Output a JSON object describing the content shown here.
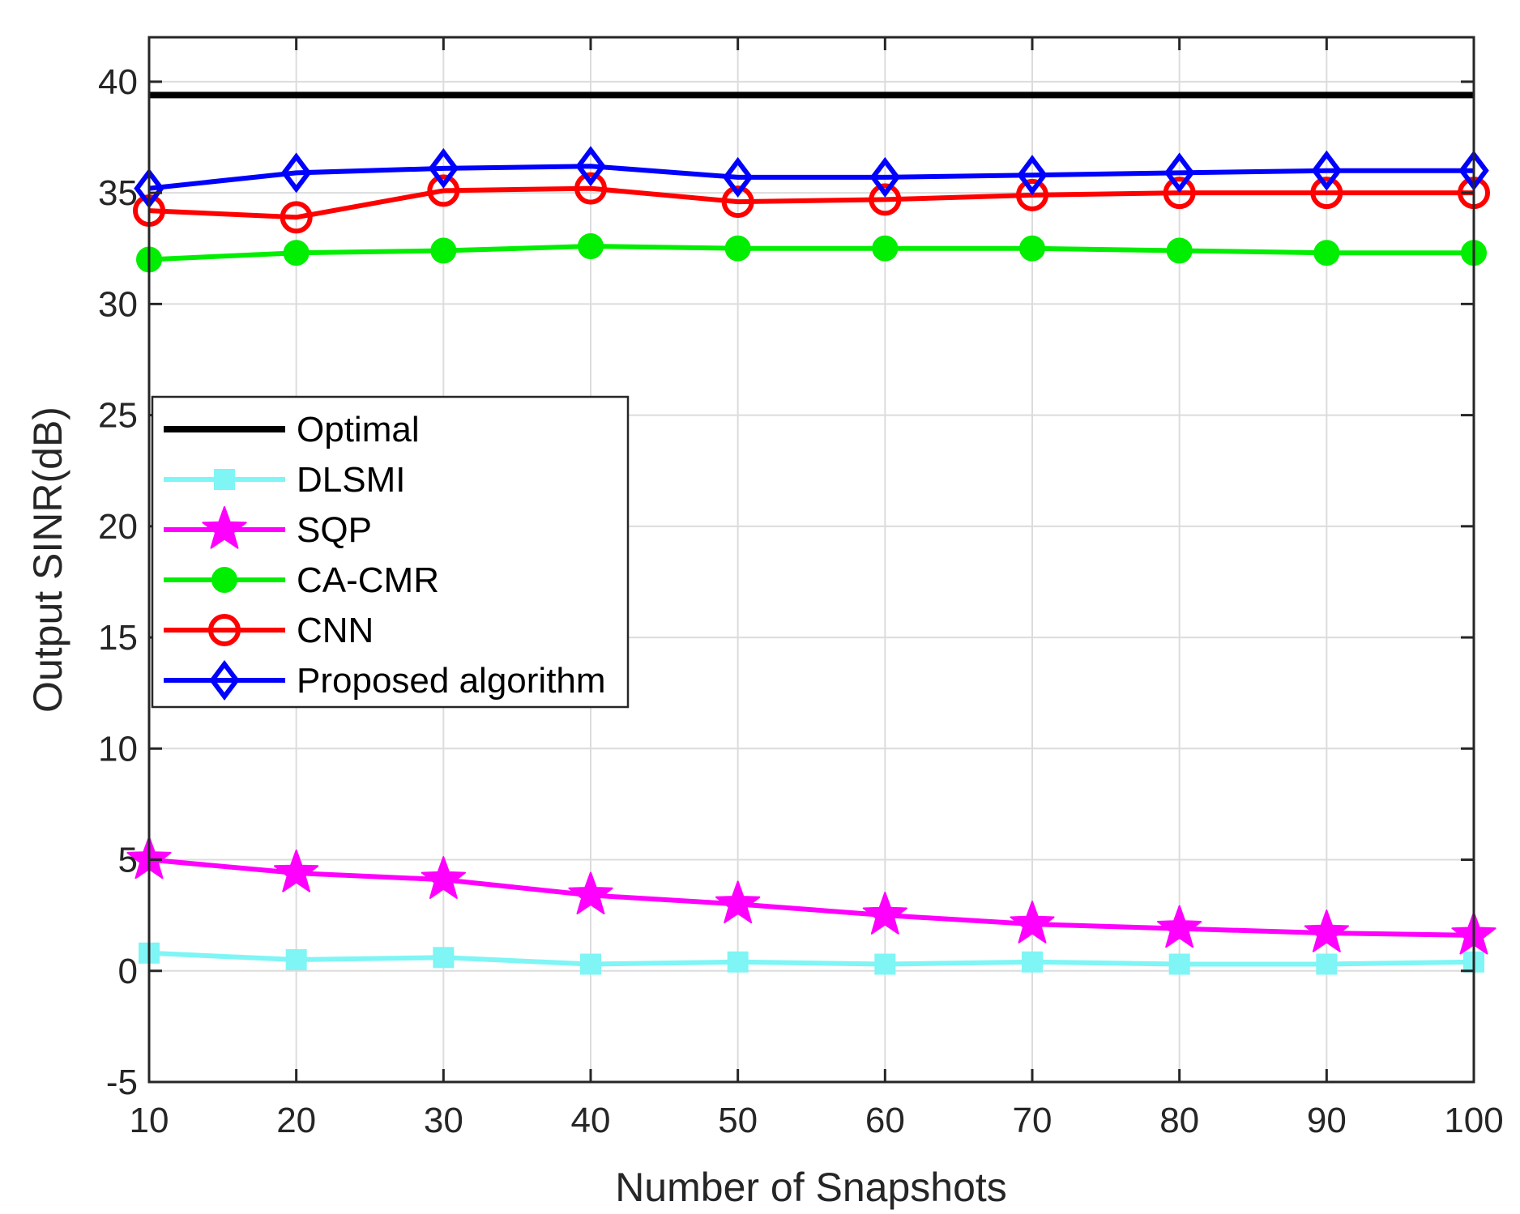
{
  "chart_data": {
    "type": "line",
    "title": "",
    "xlabel": "Number of Snapshots",
    "ylabel": "Output SINR(dB)",
    "xlim": [
      10,
      100
    ],
    "ylim": [
      -5,
      42
    ],
    "grid": true,
    "legend_position": "left-middle",
    "x": [
      10,
      20,
      30,
      40,
      50,
      60,
      70,
      80,
      90,
      100
    ],
    "x_ticks": [
      10,
      20,
      30,
      40,
      50,
      60,
      70,
      80,
      90,
      100
    ],
    "x_tick_labels": [
      "10",
      "20",
      "30",
      "40",
      "50",
      "60",
      "70",
      "80",
      "90",
      "100"
    ],
    "y_ticks": [
      -5,
      0,
      5,
      10,
      15,
      20,
      25,
      30,
      35,
      40
    ],
    "y_tick_labels": [
      "-5",
      "0",
      "5",
      "10",
      "15",
      "20",
      "25",
      "30",
      "35",
      "40"
    ],
    "series": [
      {
        "name": "Optimal",
        "color": "#000000",
        "marker": "none",
        "values": [
          39.4,
          39.4,
          39.4,
          39.4,
          39.4,
          39.4,
          39.4,
          39.4,
          39.4,
          39.4
        ]
      },
      {
        "name": "DLSMI",
        "color": "#7ff5f5",
        "marker": "square",
        "values": [
          0.8,
          0.5,
          0.6,
          0.3,
          0.4,
          0.3,
          0.4,
          0.3,
          0.3,
          0.4
        ]
      },
      {
        "name": "SQP",
        "color": "#ff00ff",
        "marker": "star",
        "values": [
          5.0,
          4.4,
          4.1,
          3.4,
          3.0,
          2.5,
          2.1,
          1.9,
          1.7,
          1.6
        ]
      },
      {
        "name": "CA-CMR",
        "color": "#00ee00",
        "marker": "circle-filled",
        "values": [
          32.0,
          32.3,
          32.4,
          32.6,
          32.5,
          32.5,
          32.5,
          32.4,
          32.3,
          32.3
        ]
      },
      {
        "name": "CNN",
        "color": "#ff0000",
        "marker": "circle-open",
        "values": [
          34.2,
          33.9,
          35.1,
          35.2,
          34.6,
          34.7,
          34.9,
          35.0,
          35.0,
          35.0
        ]
      },
      {
        "name": "Proposed algorithm",
        "color": "#0000ff",
        "marker": "diamond",
        "values": [
          35.2,
          35.9,
          36.1,
          36.2,
          35.7,
          35.7,
          35.8,
          35.9,
          36.0,
          36.0
        ]
      }
    ]
  }
}
